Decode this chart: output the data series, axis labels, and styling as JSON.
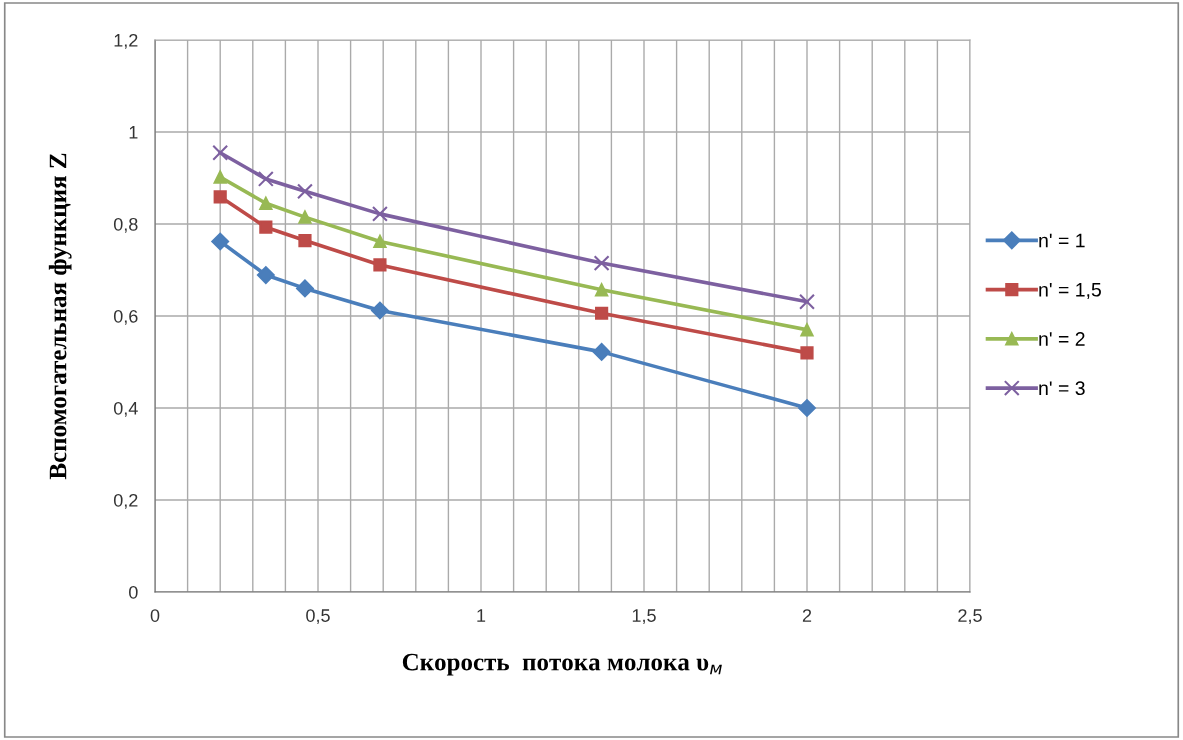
{
  "chart_data": {
    "type": "line",
    "xlabel": "Скорость  потока молока υ$_{м}$",
    "ylabel": "Вспомогательная функция Z",
    "x": [
      0.2,
      0.34,
      0.46,
      0.69,
      1.37,
      2.0
    ],
    "series": [
      {
        "name": "n' = 1",
        "color": "#4a7ebb",
        "marker": "diamond",
        "values": [
          0.762,
          0.689,
          0.66,
          0.612,
          0.522,
          0.4
        ]
      },
      {
        "name": "n' = 1,5",
        "color": "#be4b48",
        "marker": "square",
        "values": [
          0.859,
          0.793,
          0.764,
          0.711,
          0.606,
          0.52
        ]
      },
      {
        "name": "n' = 2",
        "color": "#98b954",
        "marker": "triangle",
        "values": [
          0.902,
          0.845,
          0.815,
          0.762,
          0.657,
          0.57
        ]
      },
      {
        "name": "n' = 3",
        "color": "#7d60a0",
        "marker": "cross",
        "values": [
          0.955,
          0.898,
          0.871,
          0.822,
          0.715,
          0.631
        ]
      }
    ],
    "xlim": [
      0,
      2.5
    ],
    "ylim": [
      0,
      1.2
    ],
    "xticks": [
      {
        "value": 0,
        "label": "0"
      },
      {
        "value": 0.1,
        "label": null
      },
      {
        "value": 0.2,
        "label": null
      },
      {
        "value": 0.3,
        "label": null
      },
      {
        "value": 0.4,
        "label": null
      },
      {
        "value": 0.5,
        "label": "0,5"
      },
      {
        "value": 0.6,
        "label": null
      },
      {
        "value": 0.7,
        "label": null
      },
      {
        "value": 0.8,
        "label": null
      },
      {
        "value": 0.9,
        "label": null
      },
      {
        "value": 1,
        "label": "1"
      },
      {
        "value": 1.1,
        "label": null
      },
      {
        "value": 1.2,
        "label": null
      },
      {
        "value": 1.3,
        "label": null
      },
      {
        "value": 1.4,
        "label": null
      },
      {
        "value": 1.5,
        "label": "1,5"
      },
      {
        "value": 1.6,
        "label": null
      },
      {
        "value": 1.7,
        "label": null
      },
      {
        "value": 1.8,
        "label": null
      },
      {
        "value": 1.9,
        "label": null
      },
      {
        "value": 2,
        "label": "2"
      },
      {
        "value": 2.1,
        "label": null
      },
      {
        "value": 2.2,
        "label": null
      },
      {
        "value": 2.3,
        "label": null
      },
      {
        "value": 2.4,
        "label": null
      },
      {
        "value": 2.5,
        "label": "2,5"
      }
    ],
    "yticks": [
      {
        "value": 0,
        "label": "0"
      },
      {
        "value": 0.2,
        "label": "0,2"
      },
      {
        "value": 0.4,
        "label": "0,4"
      },
      {
        "value": 0.6,
        "label": "0,6"
      },
      {
        "value": 0.8,
        "label": "0,8"
      },
      {
        "value": 1,
        "label": "1"
      },
      {
        "value": 1.2,
        "label": "1,2"
      }
    ],
    "grid": true,
    "legend": "right",
    "line_style": "solid"
  }
}
